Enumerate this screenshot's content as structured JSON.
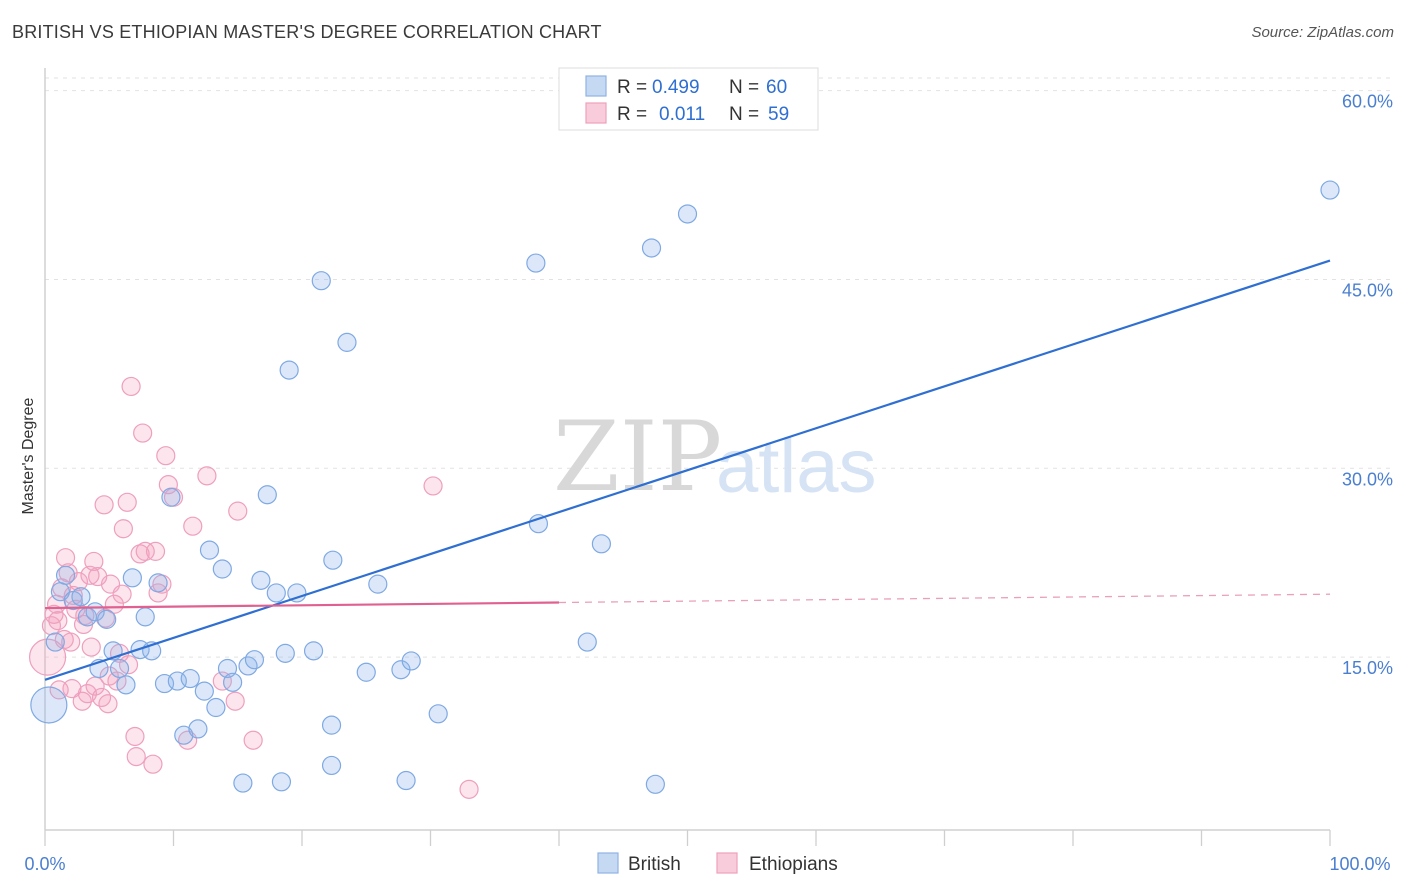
{
  "title": "BRITISH VS ETHIOPIAN MASTER'S DEGREE CORRELATION CHART",
  "source": "Source: ZipAtlas.com",
  "watermark": {
    "zip": "ZIP",
    "atlas": "atlas"
  },
  "colors": {
    "british": "#6fa0e0",
    "british_line": "#2f6fd1",
    "ethiopian": "#ee8fb0",
    "ethiopian_line": "#e0608f",
    "tick": "#4a7fd0"
  },
  "legend": {
    "rows": [
      {
        "r_label": "R =",
        "r_value": "0.499",
        "n_label": "N =",
        "n_value": "60"
      },
      {
        "r_label": "R =",
        "r_value": "0.011",
        "n_label": "N =",
        "n_value": "59"
      }
    ]
  },
  "bottom_legend": {
    "british": "British",
    "ethiopians": "Ethiopians"
  },
  "chart_data": {
    "type": "scatter",
    "title": "BRITISH VS ETHIOPIAN MASTER'S DEGREE CORRELATION CHART",
    "xlabel": "",
    "ylabel": "Master's Degree",
    "xlim": [
      0,
      100
    ],
    "ylim": [
      0,
      61
    ],
    "x_tick_labels": [
      "0.0%",
      "100.0%"
    ],
    "y_ticks": [
      15,
      30,
      45,
      60
    ],
    "y_tick_labels": [
      "15.0%",
      "30.0%",
      "45.0%",
      "60.0%"
    ],
    "series": [
      {
        "name": "British",
        "r": 0.499,
        "n": 60,
        "trend": {
          "x": [
            0,
            100
          ],
          "y": [
            13.2,
            46.5
          ],
          "dashed_from": null
        },
        "points": [
          {
            "x": 0.3,
            "y": 11.2,
            "big": true
          },
          {
            "x": 0.8,
            "y": 16.2
          },
          {
            "x": 1.2,
            "y": 20.2
          },
          {
            "x": 1.6,
            "y": 21.5
          },
          {
            "x": 2.2,
            "y": 19.5
          },
          {
            "x": 2.8,
            "y": 19.8
          },
          {
            "x": 3.3,
            "y": 18.2
          },
          {
            "x": 3.9,
            "y": 18.6
          },
          {
            "x": 4.2,
            "y": 14.1
          },
          {
            "x": 4.8,
            "y": 18.0
          },
          {
            "x": 5.3,
            "y": 15.5
          },
          {
            "x": 5.8,
            "y": 14.1
          },
          {
            "x": 6.3,
            "y": 12.8
          },
          {
            "x": 6.8,
            "y": 21.3
          },
          {
            "x": 7.4,
            "y": 15.6
          },
          {
            "x": 7.8,
            "y": 18.2
          },
          {
            "x": 8.3,
            "y": 15.5
          },
          {
            "x": 8.8,
            "y": 20.9
          },
          {
            "x": 9.3,
            "y": 12.9
          },
          {
            "x": 9.8,
            "y": 27.7
          },
          {
            "x": 10.3,
            "y": 13.1
          },
          {
            "x": 10.8,
            "y": 8.8
          },
          {
            "x": 11.3,
            "y": 13.3
          },
          {
            "x": 11.9,
            "y": 9.3
          },
          {
            "x": 12.4,
            "y": 12.3
          },
          {
            "x": 12.8,
            "y": 23.5
          },
          {
            "x": 13.3,
            "y": 11.0
          },
          {
            "x": 13.8,
            "y": 22.0
          },
          {
            "x": 14.2,
            "y": 14.1
          },
          {
            "x": 14.6,
            "y": 13.0
          },
          {
            "x": 15.4,
            "y": 5.0
          },
          {
            "x": 15.8,
            "y": 14.3
          },
          {
            "x": 16.3,
            "y": 14.8
          },
          {
            "x": 16.8,
            "y": 21.1
          },
          {
            "x": 17.3,
            "y": 27.9
          },
          {
            "x": 18.0,
            "y": 20.1
          },
          {
            "x": 18.4,
            "y": 5.1
          },
          {
            "x": 18.7,
            "y": 15.3
          },
          {
            "x": 19.0,
            "y": 37.8
          },
          {
            "x": 19.6,
            "y": 20.1
          },
          {
            "x": 20.9,
            "y": 15.5
          },
          {
            "x": 22.3,
            "y": 6.4
          },
          {
            "x": 22.4,
            "y": 22.7
          },
          {
            "x": 21.5,
            "y": 44.9
          },
          {
            "x": 22.3,
            "y": 9.6
          },
          {
            "x": 23.5,
            "y": 40.0
          },
          {
            "x": 25.0,
            "y": 13.8
          },
          {
            "x": 25.9,
            "y": 20.8
          },
          {
            "x": 27.7,
            "y": 14.0
          },
          {
            "x": 28.1,
            "y": 5.2
          },
          {
            "x": 28.5,
            "y": 14.7
          },
          {
            "x": 30.6,
            "y": 10.5
          },
          {
            "x": 38.2,
            "y": 46.3
          },
          {
            "x": 38.4,
            "y": 25.6
          },
          {
            "x": 42.2,
            "y": 16.2
          },
          {
            "x": 43.3,
            "y": 24.0
          },
          {
            "x": 47.2,
            "y": 47.5
          },
          {
            "x": 47.5,
            "y": 4.9
          },
          {
            "x": 50.0,
            "y": 50.2
          },
          {
            "x": 100.0,
            "y": 52.1
          }
        ]
      },
      {
        "name": "Ethiopians",
        "r": 0.011,
        "n": 59,
        "trend": {
          "x": [
            0,
            100
          ],
          "y": [
            18.9,
            20.0
          ],
          "dashed_from": 40
        },
        "points": [
          {
            "x": 0.2,
            "y": 15.0,
            "big": true
          },
          {
            "x": 0.5,
            "y": 17.5
          },
          {
            "x": 0.7,
            "y": 18.4
          },
          {
            "x": 1.0,
            "y": 17.9
          },
          {
            "x": 1.3,
            "y": 20.5
          },
          {
            "x": 1.5,
            "y": 16.4
          },
          {
            "x": 1.6,
            "y": 22.9
          },
          {
            "x": 1.8,
            "y": 21.7
          },
          {
            "x": 2.0,
            "y": 16.2
          },
          {
            "x": 2.1,
            "y": 12.5
          },
          {
            "x": 2.4,
            "y": 18.8
          },
          {
            "x": 2.6,
            "y": 21.0
          },
          {
            "x": 2.9,
            "y": 11.5
          },
          {
            "x": 3.1,
            "y": 18.3
          },
          {
            "x": 3.3,
            "y": 12.1
          },
          {
            "x": 3.5,
            "y": 21.5
          },
          {
            "x": 3.6,
            "y": 15.8
          },
          {
            "x": 3.8,
            "y": 22.6
          },
          {
            "x": 3.9,
            "y": 12.7
          },
          {
            "x": 4.1,
            "y": 21.4
          },
          {
            "x": 4.4,
            "y": 11.8
          },
          {
            "x": 4.6,
            "y": 27.1
          },
          {
            "x": 4.7,
            "y": 18.1
          },
          {
            "x": 4.9,
            "y": 11.3
          },
          {
            "x": 5.1,
            "y": 20.8
          },
          {
            "x": 5.4,
            "y": 19.2
          },
          {
            "x": 5.6,
            "y": 13.1
          },
          {
            "x": 5.8,
            "y": 15.3
          },
          {
            "x": 6.0,
            "y": 20.0
          },
          {
            "x": 6.1,
            "y": 25.2
          },
          {
            "x": 6.4,
            "y": 27.3
          },
          {
            "x": 6.5,
            "y": 14.4
          },
          {
            "x": 6.7,
            "y": 36.5
          },
          {
            "x": 7.0,
            "y": 8.7
          },
          {
            "x": 7.1,
            "y": 7.1
          },
          {
            "x": 7.4,
            "y": 23.2
          },
          {
            "x": 7.6,
            "y": 32.8
          },
          {
            "x": 7.8,
            "y": 23.4
          },
          {
            "x": 8.4,
            "y": 6.5
          },
          {
            "x": 8.6,
            "y": 23.4
          },
          {
            "x": 8.8,
            "y": 20.1
          },
          {
            "x": 9.1,
            "y": 20.8
          },
          {
            "x": 9.4,
            "y": 31.0
          },
          {
            "x": 9.6,
            "y": 28.7
          },
          {
            "x": 10.0,
            "y": 27.7
          },
          {
            "x": 11.1,
            "y": 8.4
          },
          {
            "x": 11.5,
            "y": 25.4
          },
          {
            "x": 12.6,
            "y": 29.4
          },
          {
            "x": 13.8,
            "y": 13.1
          },
          {
            "x": 14.8,
            "y": 11.5
          },
          {
            "x": 15.0,
            "y": 26.6
          },
          {
            "x": 16.2,
            "y": 8.4
          },
          {
            "x": 30.2,
            "y": 28.6
          },
          {
            "x": 33.0,
            "y": 4.5
          },
          {
            "x": 1.1,
            "y": 12.4
          },
          {
            "x": 2.2,
            "y": 19.9
          },
          {
            "x": 3.0,
            "y": 17.6
          },
          {
            "x": 0.9,
            "y": 19.2
          },
          {
            "x": 5.0,
            "y": 13.5
          }
        ]
      }
    ]
  }
}
